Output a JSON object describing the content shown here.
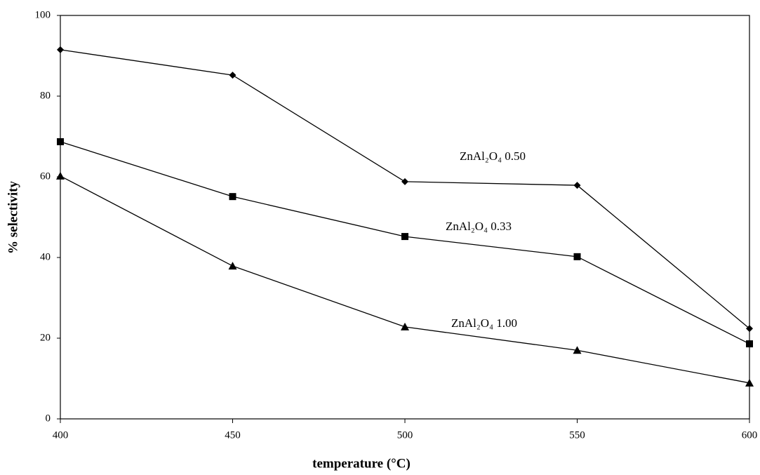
{
  "chart_data": {
    "type": "line",
    "x_label": "temperature (°C)",
    "y_label": "% selectivity",
    "x": [
      400,
      450,
      500,
      550,
      600
    ],
    "series": [
      {
        "name": "ZnAl₂O₄ 0.50",
        "color": "#000000",
        "marker": "diamond",
        "values": [
          91.5,
          85.2,
          58.8,
          57.9,
          22.4
        ]
      },
      {
        "name": "ZnAl₂O₄ 0.33",
        "color": "#000000",
        "marker": "square",
        "values": [
          68.7,
          55.1,
          45.2,
          40.2,
          18.6
        ]
      },
      {
        "name": "ZnAl₂O₄ 1.00",
        "color": "#000000",
        "marker": "triangle",
        "values": [
          60.2,
          37.9,
          22.8,
          17.0,
          8.9
        ]
      }
    ],
    "xlim": [
      400,
      600
    ],
    "xticks": [
      400,
      450,
      500,
      550,
      600
    ],
    "ylim": [
      0,
      100
    ],
    "yticks": [
      0,
      20,
      40,
      60,
      80,
      100
    ],
    "grid": false
  }
}
